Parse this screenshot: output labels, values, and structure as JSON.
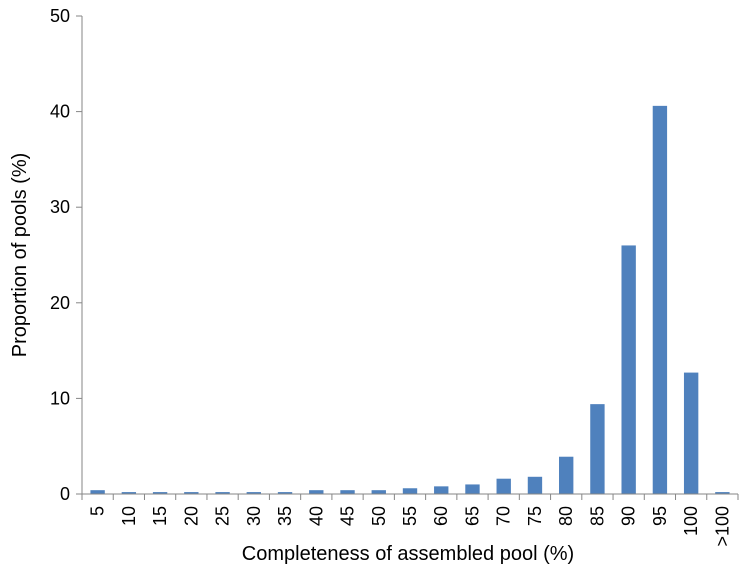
{
  "chart_data": {
    "type": "bar",
    "title": "",
    "xlabel": "Completeness of assembled pool (%)",
    "ylabel": "Proportion of pools (%)",
    "ylim": [
      0,
      50
    ],
    "yticks": [
      "0",
      "10",
      "20",
      "30",
      "40",
      "50"
    ],
    "grid": false,
    "legend": "none",
    "bar_color": "#4f81bd",
    "categories": [
      "5",
      "10",
      "15",
      "20",
      "25",
      "30",
      "35",
      "40",
      "45",
      "50",
      "55",
      "60",
      "65",
      "70",
      "75",
      "80",
      "85",
      "90",
      "95",
      "100",
      ">100"
    ],
    "values": [
      0.4,
      0.2,
      0.2,
      0.2,
      0.2,
      0.2,
      0.2,
      0.4,
      0.4,
      0.4,
      0.6,
      0.8,
      1.0,
      1.6,
      1.8,
      3.9,
      9.4,
      26.0,
      40.6,
      12.7,
      0.2
    ]
  }
}
